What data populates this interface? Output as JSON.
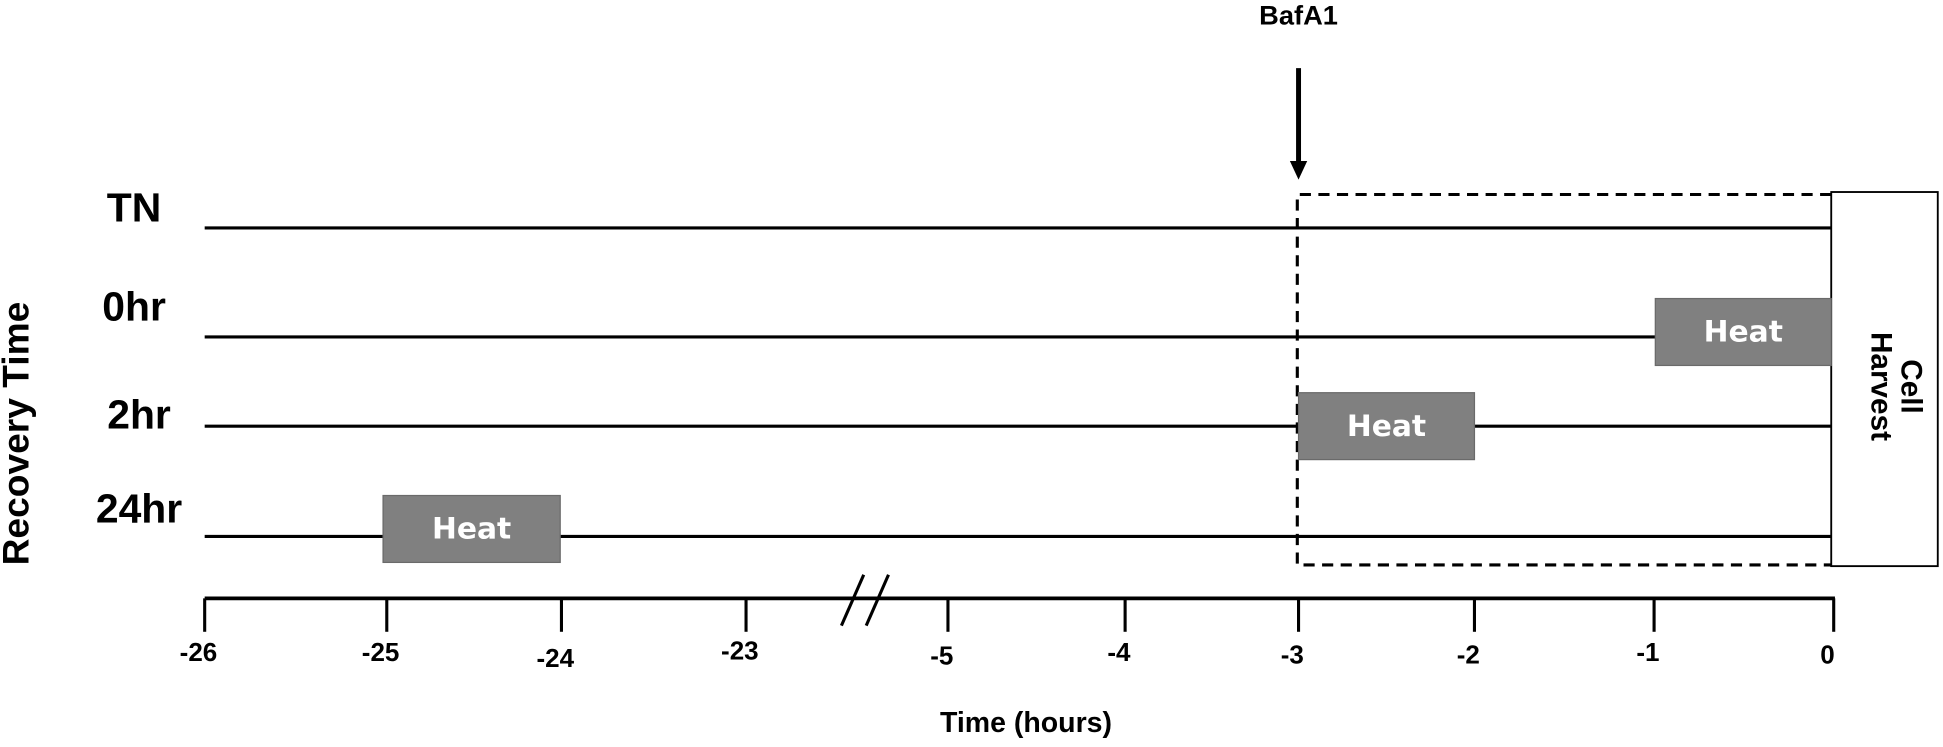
{
  "y_axis_title": "Recovery Time",
  "rows": [
    {
      "label": "TN"
    },
    {
      "label": "0hr",
      "box": "Heat"
    },
    {
      "label": "2hr",
      "box": "Heat"
    },
    {
      "label": "24hr",
      "box": "Heat"
    }
  ],
  "x_axis": {
    "title": "Time (hours)",
    "ticks": [
      "-26",
      "-25",
      "-24",
      "-23",
      "-5",
      "-4",
      "-3",
      "-2",
      "-1",
      "0"
    ]
  },
  "annotation": "BafA1",
  "harvest_lines": [
    "Cell",
    "Harvest"
  ]
}
